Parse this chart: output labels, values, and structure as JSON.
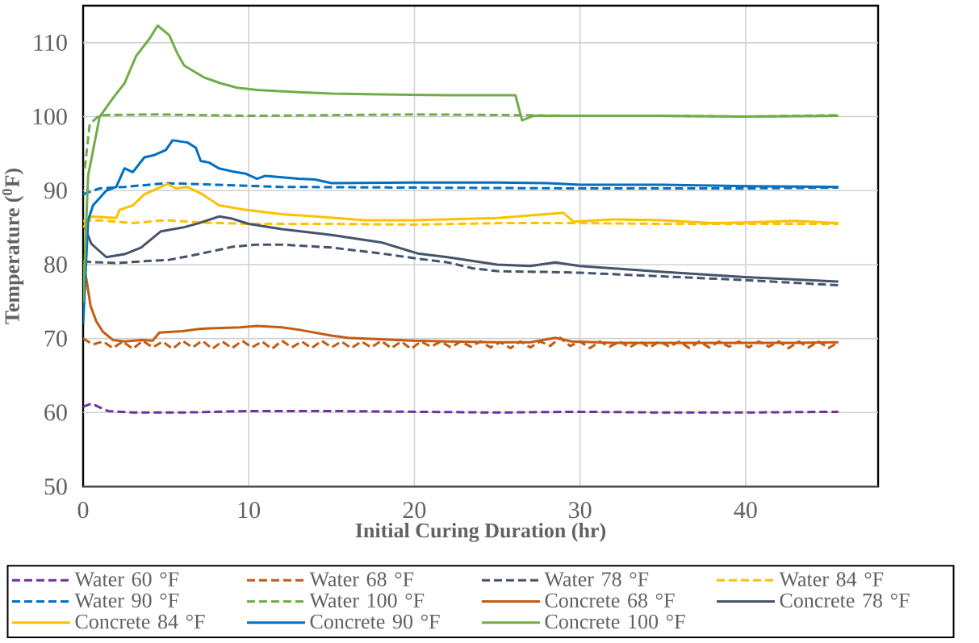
{
  "chart_data": {
    "type": "line",
    "xlabel": "Initial Curing Duration (hr)",
    "ylabel": "Temperature ($^{0}$F)",
    "xlim": [
      0,
      48
    ],
    "xticks": [
      0,
      10,
      20,
      30,
      40
    ],
    "ylim": [
      50,
      115
    ],
    "yticks": [
      50,
      60,
      70,
      80,
      90,
      100,
      110
    ],
    "grid": true,
    "legend": "bottom",
    "series": [
      {
        "name": "Water 60 °F",
        "color": "#7030a0",
        "line_style": "dashed",
        "x": [
          0,
          0.5,
          1.5,
          3,
          6,
          10,
          15,
          20,
          25,
          30,
          35,
          40,
          45.6
        ],
        "values": [
          60.8,
          61.2,
          60.2,
          60.0,
          60.0,
          60.2,
          60.2,
          60.1,
          60.0,
          60.1,
          60.0,
          60.0,
          60.1
        ]
      },
      {
        "name": "Water 68 °F",
        "color": "#c55a11",
        "line_style": "dashed",
        "x": [
          0,
          0.6,
          1.2,
          1.8,
          2.4,
          3.0,
          3.6,
          4.2,
          4.8,
          5.4,
          6.0,
          6.6,
          7.2,
          7.8,
          8.4,
          9.0,
          9.6,
          10.2,
          10.8,
          11.4,
          12.0,
          12.6,
          13.2,
          13.8,
          14.4,
          15.0,
          15.6,
          16.2,
          16.8,
          17.4,
          18.0,
          18.6,
          19.2,
          19.8,
          20.4,
          21.0,
          21.6,
          22.2,
          22.8,
          23.4,
          24.0,
          24.6,
          25.2,
          25.8,
          26.4,
          27.0,
          27.6,
          28.2,
          28.8,
          29.4,
          30.0,
          30.6,
          31.2,
          31.8,
          32.4,
          33.0,
          33.6,
          34.2,
          34.8,
          35.4,
          36.0,
          36.6,
          37.2,
          37.8,
          38.4,
          39.0,
          39.6,
          40.2,
          40.8,
          41.4,
          42.0,
          42.6,
          43.2,
          43.8,
          44.4,
          45.0,
          45.6
        ],
        "values": [
          70.0,
          69.2,
          69.6,
          68.7,
          69.6,
          68.6,
          69.7,
          68.8,
          69.6,
          68.6,
          69.7,
          68.8,
          69.7,
          68.6,
          69.6,
          68.7,
          69.7,
          68.8,
          69.6,
          68.6,
          69.7,
          68.8,
          69.6,
          68.7,
          69.7,
          68.8,
          69.6,
          68.7,
          69.6,
          68.8,
          69.7,
          68.7,
          69.6,
          68.6,
          69.6,
          68.9,
          69.6,
          68.8,
          69.6,
          68.9,
          69.6,
          68.8,
          69.5,
          68.7,
          69.6,
          68.8,
          69.6,
          69.0,
          70.1,
          69.0,
          69.6,
          68.7,
          69.6,
          68.9,
          69.6,
          68.8,
          69.6,
          68.8,
          69.6,
          68.9,
          69.6,
          68.7,
          69.6,
          68.8,
          69.6,
          68.9,
          69.6,
          68.8,
          69.6,
          68.9,
          69.6,
          68.7,
          69.6,
          68.8,
          69.6,
          68.7,
          69.5
        ]
      },
      {
        "name": "Water 78 °F",
        "color": "#44546a",
        "line_style": "dashed",
        "x": [
          0,
          2,
          4,
          5.1,
          6.5,
          8,
          9,
          10.5,
          12,
          15,
          18,
          20.2,
          22,
          23.5,
          25.1,
          28,
          30,
          35,
          40,
          45.6
        ],
        "values": [
          80.4,
          80.2,
          80.5,
          80.6,
          81.2,
          81.9,
          82.4,
          82.7,
          82.7,
          82.3,
          81.5,
          80.8,
          80.3,
          79.5,
          79.1,
          79.0,
          78.9,
          78.4,
          77.9,
          77.2
        ]
      },
      {
        "name": "Water 84 °F",
        "color": "#ffc000",
        "line_style": "dashed",
        "x": [
          0,
          1,
          3,
          5,
          7,
          10,
          15,
          20,
          25,
          30,
          35,
          40,
          45.6
        ],
        "values": [
          85.9,
          86.0,
          85.6,
          86.0,
          85.7,
          85.5,
          85.5,
          85.4,
          85.6,
          85.6,
          85.5,
          85.5,
          85.5
        ]
      },
      {
        "name": "Water 90 °F",
        "color": "#0070c0",
        "line_style": "dashed",
        "x": [
          0,
          1,
          2.5,
          4,
          5,
          6.5,
          8,
          12,
          20,
          30,
          40,
          45.6
        ],
        "values": [
          89.5,
          90.3,
          90.5,
          90.8,
          91.0,
          90.9,
          90.8,
          90.5,
          90.4,
          90.3,
          90.3,
          90.4
        ]
      },
      {
        "name": "Water 100 °F",
        "color": "#70ad47",
        "line_style": "dashed",
        "x": [
          0.1,
          0.4,
          1,
          4.5,
          10,
          15,
          20,
          26,
          30,
          35,
          40,
          45.6
        ],
        "values": [
          93.0,
          99.0,
          100.2,
          100.3,
          100.1,
          100.2,
          100.3,
          100.2,
          100.1,
          100.1,
          100.0,
          100.2
        ]
      },
      {
        "name": "Concrete 68 °F",
        "color": "#c55a11",
        "line_style": "solid",
        "x": [
          0,
          0.2,
          0.45,
          0.8,
          1.2,
          1.8,
          2.5,
          3.5,
          4.2,
          4.6,
          6,
          7,
          8,
          9.5,
          10.5,
          12,
          13,
          14,
          15,
          16,
          18,
          20,
          22,
          25,
          27,
          28.5,
          29.5,
          32,
          36,
          40,
          43,
          45.6
        ],
        "values": [
          80.0,
          78.0,
          74.4,
          72.3,
          70.9,
          69.8,
          69.6,
          69.8,
          69.7,
          70.8,
          71.0,
          71.3,
          71.4,
          71.5,
          71.7,
          71.5,
          71.2,
          70.8,
          70.4,
          70.1,
          69.9,
          69.7,
          69.6,
          69.5,
          69.5,
          70.1,
          69.6,
          69.4,
          69.4,
          69.4,
          69.4,
          69.5
        ]
      },
      {
        "name": "Concrete 78 °F",
        "color": "#44546a",
        "line_style": "solid",
        "x": [
          0.1,
          0.5,
          1.4,
          2.5,
          3.5,
          4.7,
          6,
          7,
          8.2,
          9,
          10,
          12,
          15,
          18,
          20.2,
          22,
          23.5,
          25,
          27,
          28.5,
          30,
          35,
          40,
          45.6
        ],
        "values": [
          85.0,
          82.8,
          81.0,
          81.4,
          82.3,
          84.5,
          85.0,
          85.6,
          86.5,
          86.2,
          85.5,
          84.8,
          84.0,
          83.0,
          81.5,
          81.0,
          80.5,
          80.0,
          79.8,
          80.3,
          79.8,
          79.0,
          78.3,
          77.7
        ]
      },
      {
        "name": "Concrete 84 °F",
        "color": "#ffc000",
        "line_style": "solid",
        "x": [
          0,
          0.5,
          2.0,
          2.2,
          3.0,
          3.7,
          5.1,
          5.6,
          6.3,
          7.2,
          8.2,
          9.8,
          12,
          14,
          17,
          20,
          25,
          29,
          29.6,
          32,
          35,
          38,
          40,
          43,
          45.6
        ],
        "values": [
          85.0,
          86.5,
          86.3,
          87.4,
          88.0,
          89.5,
          90.9,
          90.3,
          90.5,
          89.5,
          88.0,
          87.4,
          86.8,
          86.5,
          86.0,
          86.0,
          86.3,
          87.0,
          85.8,
          86.1,
          86.0,
          85.6,
          85.7,
          85.9,
          85.6
        ]
      },
      {
        "name": "Concrete 90 °F",
        "color": "#0070c0",
        "line_style": "solid",
        "x": [
          0,
          0.3,
          0.6,
          1.4,
          2.0,
          2.5,
          3.0,
          3.7,
          4.3,
          5.0,
          5.4,
          6.3,
          6.8,
          7.1,
          7.6,
          8.2,
          9.0,
          9.8,
          10.5,
          11,
          13,
          14,
          15,
          20,
          25,
          28,
          30,
          35,
          40,
          45.6
        ],
        "values": [
          72.0,
          86.0,
          88.0,
          90.0,
          90.5,
          93.0,
          92.5,
          94.5,
          94.8,
          95.5,
          96.8,
          96.5,
          95.8,
          94.0,
          93.8,
          93.0,
          92.6,
          92.3,
          91.6,
          92.0,
          91.6,
          91.5,
          91.0,
          91.1,
          91.1,
          91.0,
          90.8,
          90.8,
          90.6,
          90.5
        ]
      },
      {
        "name": "Concrete 100 °F",
        "color": "#70ad47",
        "line_style": "solid",
        "x": [
          0,
          0.3,
          1.0,
          1.8,
          2.5,
          3.2,
          4.0,
          4.5,
          5.2,
          5.7,
          6.1,
          7.3,
          8.3,
          9.3,
          10.5,
          13,
          15,
          18,
          22,
          26.1,
          26.5,
          27.2,
          30,
          35,
          40,
          45.6
        ],
        "values": [
          74.9,
          92.0,
          100.0,
          102.5,
          104.5,
          108.2,
          110.5,
          112.3,
          111.0,
          108.5,
          106.9,
          105.3,
          104.5,
          103.9,
          103.6,
          103.3,
          103.1,
          103.0,
          102.9,
          102.9,
          99.5,
          100.1,
          100.1,
          100.1,
          100.0,
          100.1
        ]
      }
    ]
  }
}
